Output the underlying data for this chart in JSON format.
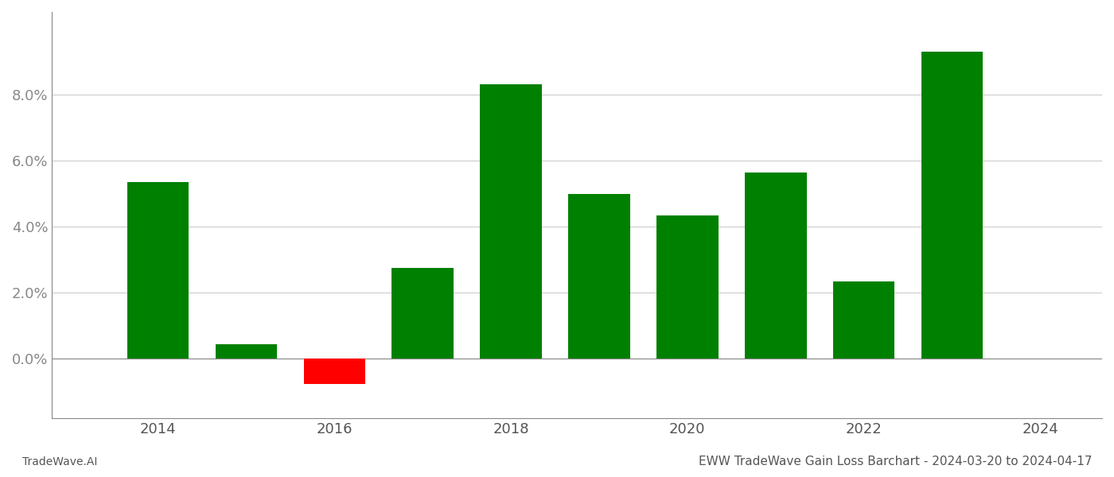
{
  "years": [
    2014,
    2015,
    2016,
    2017,
    2018,
    2019,
    2020,
    2021,
    2022,
    2023
  ],
  "values": [
    0.0535,
    0.0045,
    -0.0075,
    0.0275,
    0.083,
    0.05,
    0.0435,
    0.0565,
    0.0235,
    0.093
  ],
  "bar_colors_positive": "#008000",
  "bar_colors_negative": "#ff0000",
  "title": "EWW TradeWave Gain Loss Barchart - 2024-03-20 to 2024-04-17",
  "footer_left": "TradeWave.AI",
  "ylim_min": -0.018,
  "ylim_max": 0.105,
  "yticks": [
    0.0,
    0.02,
    0.04,
    0.06,
    0.08
  ],
  "xticks": [
    2014,
    2016,
    2018,
    2020,
    2022,
    2024
  ],
  "xlim_min": 2012.8,
  "xlim_max": 2024.7,
  "background_color": "#ffffff",
  "grid_color": "#cccccc",
  "bar_width": 0.7,
  "title_fontsize": 11,
  "footer_fontsize": 10,
  "tick_fontsize": 13
}
